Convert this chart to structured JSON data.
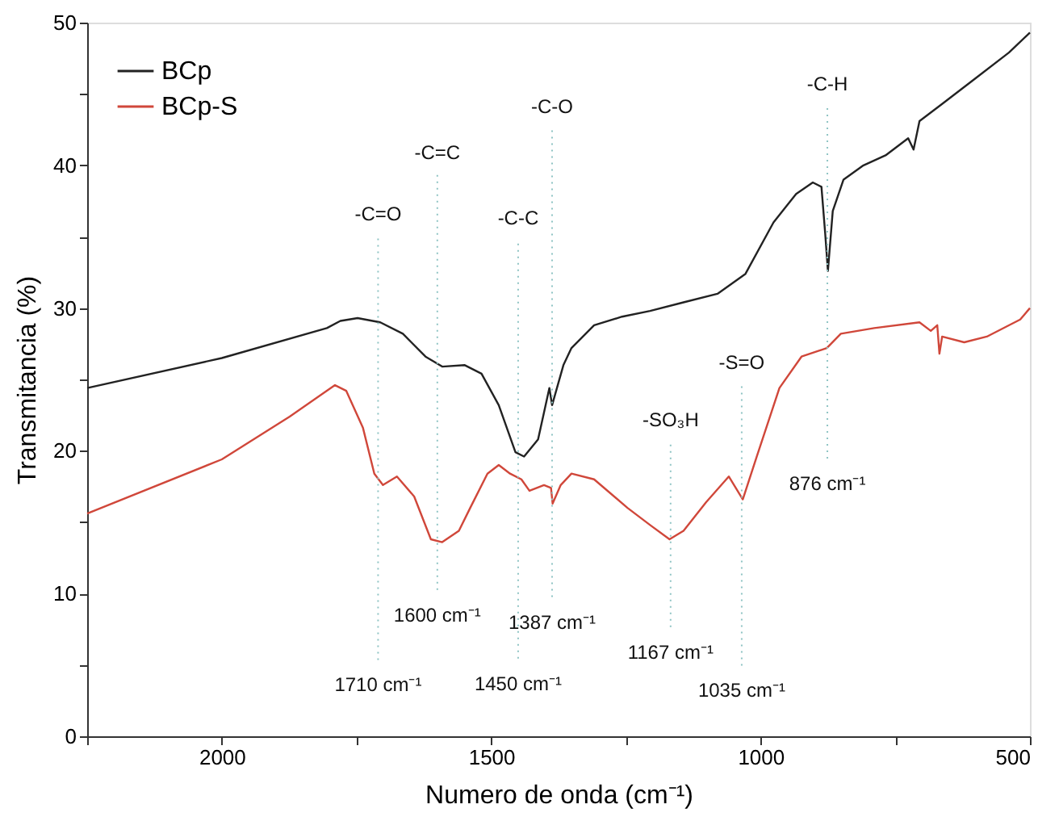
{
  "chart_data": {
    "type": "line",
    "xlabel": "Numero de onda (cm⁻¹)",
    "ylabel": "Transmitancia (%)",
    "xlim": [
      2250,
      500
    ],
    "xticks": [
      {
        "value": 2250,
        "label": null
      },
      2000,
      {
        "value": 1750,
        "label": null
      },
      1500,
      {
        "value": 1250,
        "label": null
      },
      1000,
      {
        "value": 750,
        "label": null
      },
      500
    ],
    "ylim": [
      0,
      50
    ],
    "yticks": [
      0,
      {
        "value": 5,
        "label": null
      },
      10,
      {
        "value": 15,
        "label": null
      },
      20,
      {
        "value": 25,
        "label": null
      },
      30,
      {
        "value": 35,
        "label": null
      },
      40,
      {
        "value": 45,
        "label": null
      },
      50
    ],
    "grid": false,
    "legend": "top left",
    "marker": "none",
    "line_style": "solid",
    "series": [
      {
        "name": "BCp",
        "color": "#222222",
        "x": [
          2250,
          2000,
          1805,
          1780,
          1748,
          1706,
          1664,
          1622,
          1591,
          1549,
          1518,
          1486,
          1455,
          1439,
          1413,
          1392,
          1387,
          1366,
          1351,
          1309,
          1257,
          1205,
          1143,
          1080,
          1028,
          976,
          934,
          903,
          887,
          880,
          875,
          866,
          846,
          809,
          768,
          726,
          716,
          705,
          663,
          601,
          539,
          500
        ],
        "values": [
          24.4,
          26.5,
          28.6,
          29.1,
          29.3,
          29.0,
          28.2,
          26.6,
          25.9,
          26.0,
          25.4,
          23.2,
          19.9,
          19.6,
          20.8,
          24.4,
          23.2,
          26.0,
          27.2,
          28.8,
          29.4,
          29.8,
          30.4,
          31.0,
          32.4,
          36.0,
          38.0,
          38.8,
          38.5,
          35.2,
          32.6,
          36.8,
          39.0,
          40.0,
          40.7,
          41.9,
          41.1,
          43.1,
          44.3,
          46.1,
          47.9,
          49.3
        ]
      },
      {
        "name": "BCp-S",
        "color": "#d0473a",
        "x": [
          2250,
          2000,
          1874,
          1790,
          1769,
          1738,
          1717,
          1701,
          1675,
          1643,
          1612,
          1591,
          1560,
          1539,
          1507,
          1486,
          1465,
          1444,
          1429,
          1402,
          1389,
          1386,
          1371,
          1351,
          1309,
          1247,
          1205,
          1169,
          1143,
          1101,
          1059,
          1033,
          1007,
          965,
          924,
          877,
          851,
          789,
          705,
          684,
          672,
          668,
          663,
          622,
          580,
          518,
          500
        ],
        "values": [
          15.6,
          19.4,
          22.4,
          24.6,
          24.2,
          21.6,
          18.4,
          17.6,
          18.2,
          16.8,
          13.8,
          13.6,
          14.4,
          16.0,
          18.4,
          19.0,
          18.4,
          18.0,
          17.2,
          17.6,
          17.4,
          16.3,
          17.6,
          18.4,
          18.0,
          16.0,
          14.8,
          13.8,
          14.4,
          16.4,
          18.2,
          16.6,
          19.6,
          24.4,
          26.6,
          27.2,
          28.2,
          28.6,
          29.0,
          28.4,
          28.8,
          26.8,
          28.0,
          27.6,
          28.0,
          29.2,
          30.0
        ]
      }
    ],
    "ref_lines": [
      {
        "axis": "x",
        "value": 1710,
        "label": "-C=O",
        "color": "#8fc4c4",
        "line_style": "dotted"
      },
      {
        "axis": "x",
        "value": 1600,
        "label": "-C=C",
        "color": "#8fc4c4",
        "line_style": "dotted"
      },
      {
        "axis": "x",
        "value": 1450,
        "label": "-C-C",
        "color": "#8fc4c4",
        "line_style": "dotted"
      },
      {
        "axis": "x",
        "value": 1387,
        "label": "-C-O",
        "color": "#8fc4c4",
        "line_style": "dotted"
      },
      {
        "axis": "x",
        "value": 1167,
        "label": "-SO₃H",
        "color": "#8fc4c4",
        "line_style": "dotted"
      },
      {
        "axis": "x",
        "value": 1035,
        "label": "-S=O",
        "color": "#8fc4c4",
        "line_style": "dotted"
      },
      {
        "axis": "x",
        "value": 876,
        "label": "-C-H",
        "color": "#8fc4c4",
        "line_style": "dotted"
      }
    ],
    "annotations": [
      "1710 cm⁻¹",
      "1600 cm⁻¹",
      "1450 cm⁻¹",
      "1387 cm⁻¹",
      "1167 cm⁻¹",
      "1035 cm⁻¹",
      "876 cm⁻¹"
    ]
  }
}
